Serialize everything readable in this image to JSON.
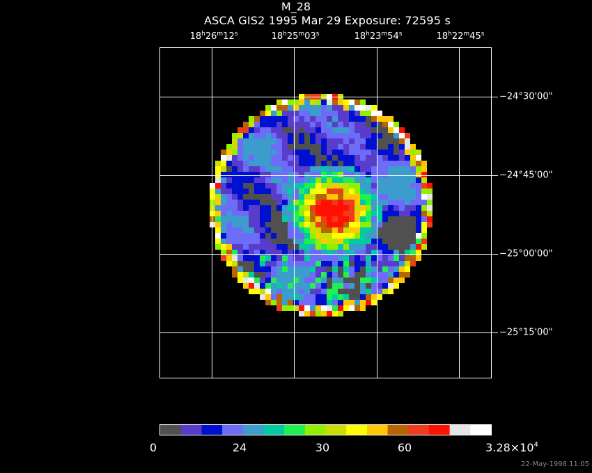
{
  "header": {
    "title": "M_28",
    "subtitle": "ASCA GIS2   1995 Mar 29    Exposure: 72595 s"
  },
  "ra_ticks": [
    {
      "h": "18",
      "m": "26",
      "s": "12"
    },
    {
      "h": "18",
      "m": "25",
      "s": "03"
    },
    {
      "h": "18",
      "m": "23",
      "s": "54"
    },
    {
      "h": "18",
      "m": "22",
      "s": "45"
    }
  ],
  "dec_ticks": [
    {
      "prefix": "−24°30'00",
      "suffix": "\""
    },
    {
      "prefix": "−24°45'00",
      "suffix": "\""
    },
    {
      "prefix": "−25°00'00",
      "suffix": "\""
    },
    {
      "prefix": "−25°15'00",
      "suffix": "\""
    }
  ],
  "colorbar": {
    "colors": [
      "#505050",
      "#5a3ccc",
      "#0010d0",
      "#6c6cf8",
      "#3c9ccc",
      "#00cca0",
      "#20f050",
      "#90f000",
      "#c8e000",
      "#ffff00",
      "#ffc800",
      "#b86400",
      "#f03c1c",
      "#ff1000",
      "#e6e6e6",
      "#ffffff"
    ],
    "labels": [
      "0",
      "24",
      "30",
      "60"
    ],
    "max_mantissa": "3.28×10",
    "max_exponent": "4"
  },
  "image": {
    "description_colors_only": true,
    "source_center_color": "#f03c1c"
  },
  "datestamp": "22-May-1998 11:05"
}
